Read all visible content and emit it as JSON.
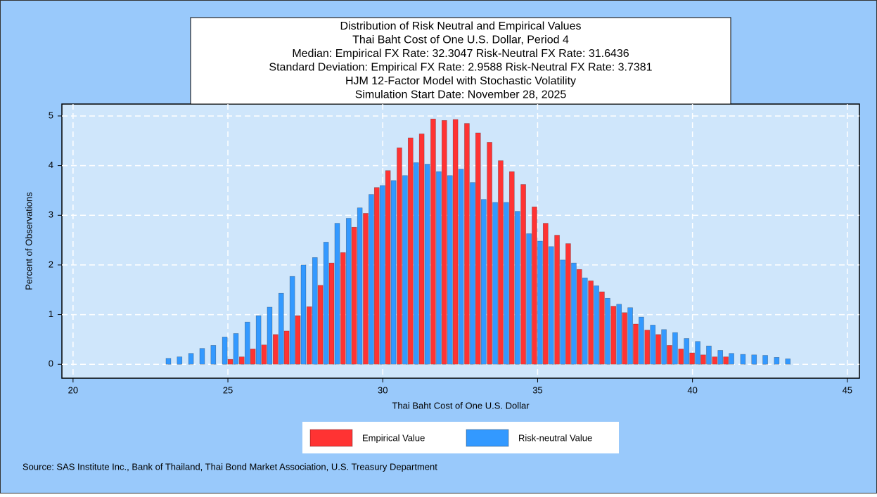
{
  "chart_data": {
    "type": "bar",
    "title": [
      "Distribution of Risk Neutral and Empirical Values",
      "Thai Baht Cost of One U.S. Dollar, Period 4",
      "Median: Empirical FX Rate: 32.3047   Risk-Neutral FX Rate: 31.6436",
      "Standard Deviation: Empirical FX Rate:  2.9588   Risk-Neutral FX Rate:  3.7381",
      "HJM 12-Factor Model with Stochastic Volatility",
      "Simulation Start Date: November 28, 2025"
    ],
    "x_label": "Thai Baht Cost of One U.S. Dollar",
    "y_label": "Percent of Observations",
    "source": "Source: SAS Institute Inc., Bank of Thailand, Thai Bond Market Association, U.S. Treasury Department",
    "x": [
      23.0,
      23.36,
      23.73,
      24.09,
      24.45,
      24.82,
      25.18,
      25.55,
      25.91,
      26.27,
      26.64,
      27.0,
      27.36,
      27.73,
      28.09,
      28.45,
      28.82,
      29.18,
      29.55,
      29.91,
      30.27,
      30.64,
      31.0,
      31.36,
      31.73,
      32.09,
      32.45,
      32.82,
      33.18,
      33.55,
      33.91,
      34.27,
      34.64,
      35.0,
      35.36,
      35.73,
      36.09,
      36.45,
      36.82,
      37.18,
      37.55,
      37.91,
      38.27,
      38.64,
      39.0,
      39.36,
      39.73,
      40.09,
      40.45,
      40.82,
      41.18,
      41.55,
      41.91,
      42.27,
      42.64,
      43.0
    ],
    "series": [
      {
        "name": "Empirical Value",
        "color": "#ff3333",
        "values": [
          null,
          null,
          null,
          null,
          null,
          null,
          0.1,
          0.15,
          0.31,
          0.39,
          0.6,
          0.67,
          0.98,
          1.16,
          1.59,
          2.04,
          2.25,
          2.76,
          3.04,
          3.56,
          3.9,
          4.36,
          4.56,
          4.64,
          4.94,
          4.91,
          4.93,
          4.85,
          4.66,
          4.47,
          4.1,
          3.88,
          3.62,
          3.17,
          2.84,
          2.6,
          2.43,
          1.91,
          1.68,
          1.46,
          1.17,
          1.04,
          0.81,
          0.69,
          0.6,
          0.38,
          0.31,
          0.23,
          0.19,
          0.15,
          0.15,
          null,
          null,
          null,
          null,
          null
        ]
      },
      {
        "name": "Risk-neutral Value",
        "color": "#3399ff",
        "values": [
          0.12,
          0.15,
          0.22,
          0.32,
          0.38,
          0.55,
          0.62,
          0.85,
          0.98,
          1.15,
          1.43,
          1.77,
          2.0,
          2.15,
          2.46,
          2.84,
          2.94,
          3.15,
          3.42,
          3.6,
          3.7,
          3.8,
          4.06,
          4.03,
          3.88,
          3.8,
          3.93,
          3.66,
          3.32,
          3.26,
          3.26,
          3.08,
          2.63,
          2.48,
          2.37,
          2.1,
          2.04,
          1.74,
          1.58,
          1.33,
          1.21,
          1.14,
          0.95,
          0.79,
          0.7,
          0.64,
          0.52,
          0.46,
          0.37,
          0.28,
          0.22,
          0.2,
          0.19,
          0.18,
          0.14,
          0.11
        ]
      }
    ],
    "xlim": [
      19.64,
      45.39
    ],
    "xticks": [
      20,
      25,
      30,
      35,
      40,
      45
    ],
    "ylim": [
      -0.28,
      5.24
    ],
    "yticks": [
      0,
      1,
      2,
      3,
      4,
      5
    ],
    "grid": true
  }
}
